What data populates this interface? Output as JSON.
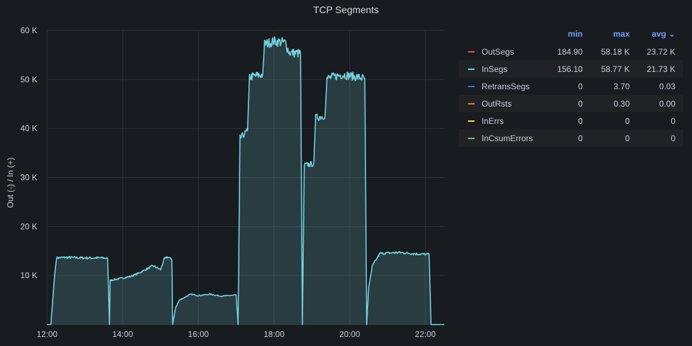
{
  "chart_data": {
    "type": "area",
    "title": "TCP Segments",
    "ylabel": "Out (-) / In (+)",
    "x_tick_labels": [
      "12:00",
      "14:00",
      "16:00",
      "18:00",
      "20:00",
      "22:00"
    ],
    "y_tick_labels": [
      "10 K",
      "20 K",
      "30 K",
      "40 K",
      "50 K",
      "60 K"
    ],
    "xlim_hours": [
      12.0,
      22.5
    ],
    "ylim": [
      0,
      60000
    ],
    "grid": true,
    "legend_position": "right",
    "series": [
      {
        "name": "InSegs",
        "color": "#73d2de",
        "points": [
          [
            12.0,
            0
          ],
          [
            12.1,
            0
          ],
          [
            12.2,
            10000
          ],
          [
            12.25,
            13600
          ],
          [
            12.5,
            13700
          ],
          [
            13.0,
            13600
          ],
          [
            13.5,
            13600
          ],
          [
            13.6,
            13500
          ],
          [
            13.65,
            0
          ],
          [
            13.67,
            9000
          ],
          [
            13.8,
            9200
          ],
          [
            14.0,
            9500
          ],
          [
            14.2,
            9800
          ],
          [
            14.4,
            10400
          ],
          [
            14.6,
            11200
          ],
          [
            14.8,
            12000
          ],
          [
            15.0,
            11200
          ],
          [
            15.1,
            13400
          ],
          [
            15.2,
            13800
          ],
          [
            15.3,
            13200
          ],
          [
            15.32,
            0
          ],
          [
            15.4,
            3500
          ],
          [
            15.5,
            5000
          ],
          [
            15.8,
            6200
          ],
          [
            16.0,
            5900
          ],
          [
            16.3,
            6200
          ],
          [
            16.6,
            5800
          ],
          [
            17.0,
            6000
          ],
          [
            17.05,
            0
          ],
          [
            17.1,
            38000
          ],
          [
            17.3,
            39500
          ],
          [
            17.35,
            50500
          ],
          [
            17.7,
            51000
          ],
          [
            17.75,
            57200
          ],
          [
            18.0,
            57800
          ],
          [
            18.3,
            57500
          ],
          [
            18.4,
            55500
          ],
          [
            18.7,
            55300
          ],
          [
            18.75,
            0
          ],
          [
            18.8,
            32500
          ],
          [
            19.05,
            32800
          ],
          [
            19.1,
            42200
          ],
          [
            19.35,
            42600
          ],
          [
            19.4,
            50200
          ],
          [
            19.8,
            51000
          ],
          [
            20.2,
            50500
          ],
          [
            20.4,
            50200
          ],
          [
            20.45,
            0
          ],
          [
            20.5,
            7500
          ],
          [
            20.6,
            12000
          ],
          [
            20.8,
            14500
          ],
          [
            21.3,
            14700
          ],
          [
            21.8,
            14400
          ],
          [
            22.1,
            14300
          ],
          [
            22.15,
            0
          ],
          [
            22.5,
            0
          ]
        ]
      }
    ],
    "legend": {
      "headers": {
        "min": "min",
        "max": "max",
        "avg": "avg"
      },
      "rows": [
        {
          "name": "OutSegs",
          "color": "#f2495c",
          "min": "184.90",
          "max": "58.18 K",
          "avg": "23.72 K"
        },
        {
          "name": "InSegs",
          "color": "#73d2de",
          "min": "156.10",
          "max": "58.77 K",
          "avg": "21.73 K"
        },
        {
          "name": "RetransSegs",
          "color": "#3274d9",
          "min": "0",
          "max": "3.70",
          "avg": "0.03"
        },
        {
          "name": "OutRsts",
          "color": "#ff780a",
          "min": "0",
          "max": "0.30",
          "avg": "0.00"
        },
        {
          "name": "InErrs",
          "color": "#fade2a",
          "min": "0",
          "max": "0",
          "avg": "0"
        },
        {
          "name": "InCsumErrors",
          "color": "#73bf69",
          "min": "0",
          "max": "0",
          "avg": "0"
        }
      ]
    }
  }
}
